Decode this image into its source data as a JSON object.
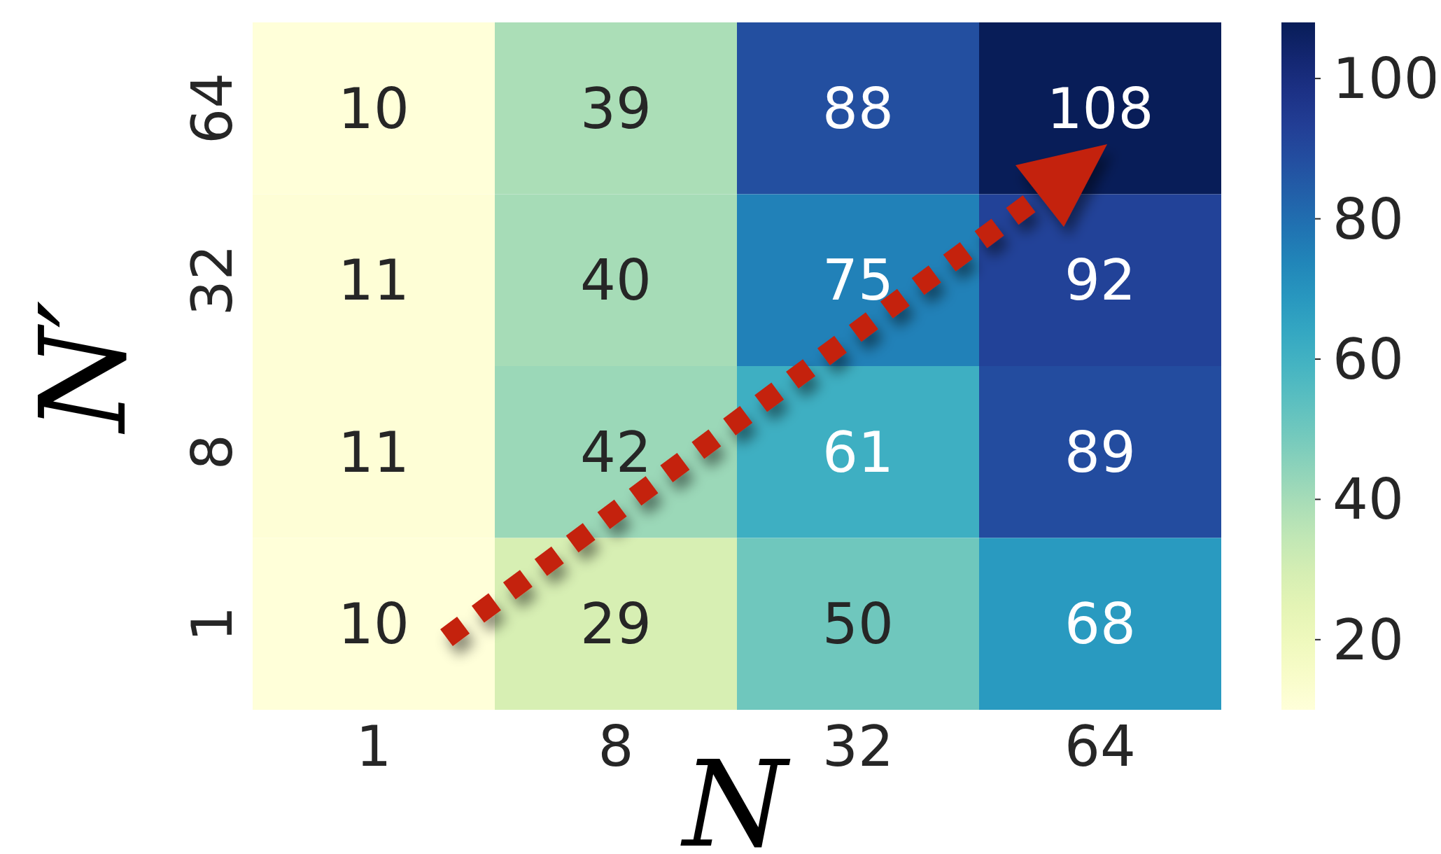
{
  "chart_data": {
    "type": "heatmap",
    "xlabel": "N",
    "ylabel": "N′",
    "categories": [
      "1",
      "8",
      "32",
      "64"
    ],
    "y_categories": [
      "64",
      "32",
      "8",
      "1"
    ],
    "cells": [
      [
        10,
        39,
        88,
        108
      ],
      [
        11,
        40,
        75,
        92
      ],
      [
        11,
        42,
        61,
        89
      ],
      [
        10,
        29,
        50,
        68
      ]
    ],
    "data_labels": true,
    "clim": [
      10,
      108
    ],
    "cticks": [
      20,
      40,
      60,
      80,
      100
    ]
  }
}
